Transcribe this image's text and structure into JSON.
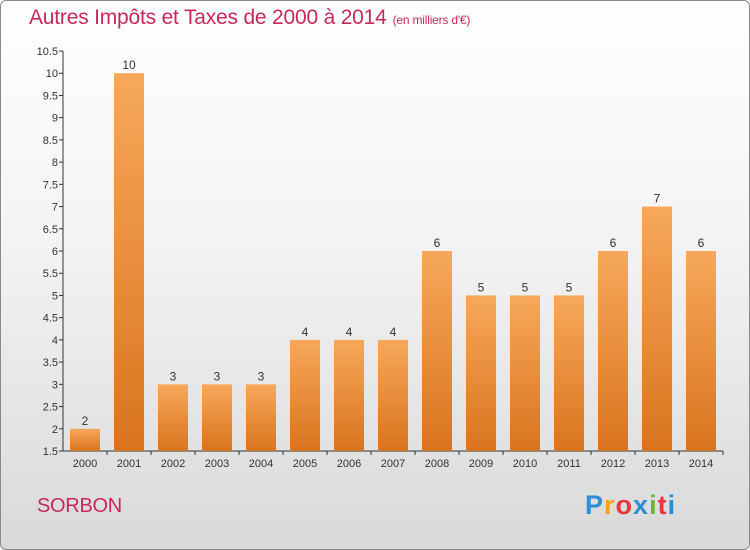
{
  "title": "Autres Impôts et Taxes de 2000 à 2014",
  "subtitle": "(en milliers d'€)",
  "commune": "SORBON",
  "logo": {
    "letters": [
      "P",
      "r",
      "o",
      "x",
      "i",
      "t",
      "i"
    ],
    "colors": [
      "#2a8fd6",
      "#f2a21c",
      "#e8383d",
      "#2a8fd6",
      "#6cb33e",
      "#e8383d",
      "#2a8fd6"
    ]
  },
  "colors": {
    "title": "#c8285a",
    "bar_top": "#f7a85a",
    "bar_bottom": "#d9741e",
    "axis": "#333333"
  },
  "chart_data": {
    "type": "bar",
    "categories": [
      "2000",
      "2001",
      "2002",
      "2003",
      "2004",
      "2005",
      "2006",
      "2007",
      "2008",
      "2009",
      "2010",
      "2011",
      "2012",
      "2013",
      "2014"
    ],
    "values": [
      2,
      10,
      3,
      3,
      3,
      4,
      4,
      4,
      6,
      5,
      5,
      5,
      6,
      7,
      6
    ],
    "ylim": [
      1.5,
      10.5
    ],
    "yticks": [
      "1.5",
      "2",
      "2.5",
      "3",
      "3.5",
      "4",
      "4.5",
      "5",
      "5.5",
      "6",
      "6.5",
      "7",
      "7.5",
      "8",
      "8.5",
      "9",
      "9.5",
      "10",
      "10.5"
    ],
    "title": "Autres Impôts et Taxes de 2000 à 2014",
    "xlabel": "",
    "ylabel": "",
    "grid": false,
    "legend": "none"
  }
}
